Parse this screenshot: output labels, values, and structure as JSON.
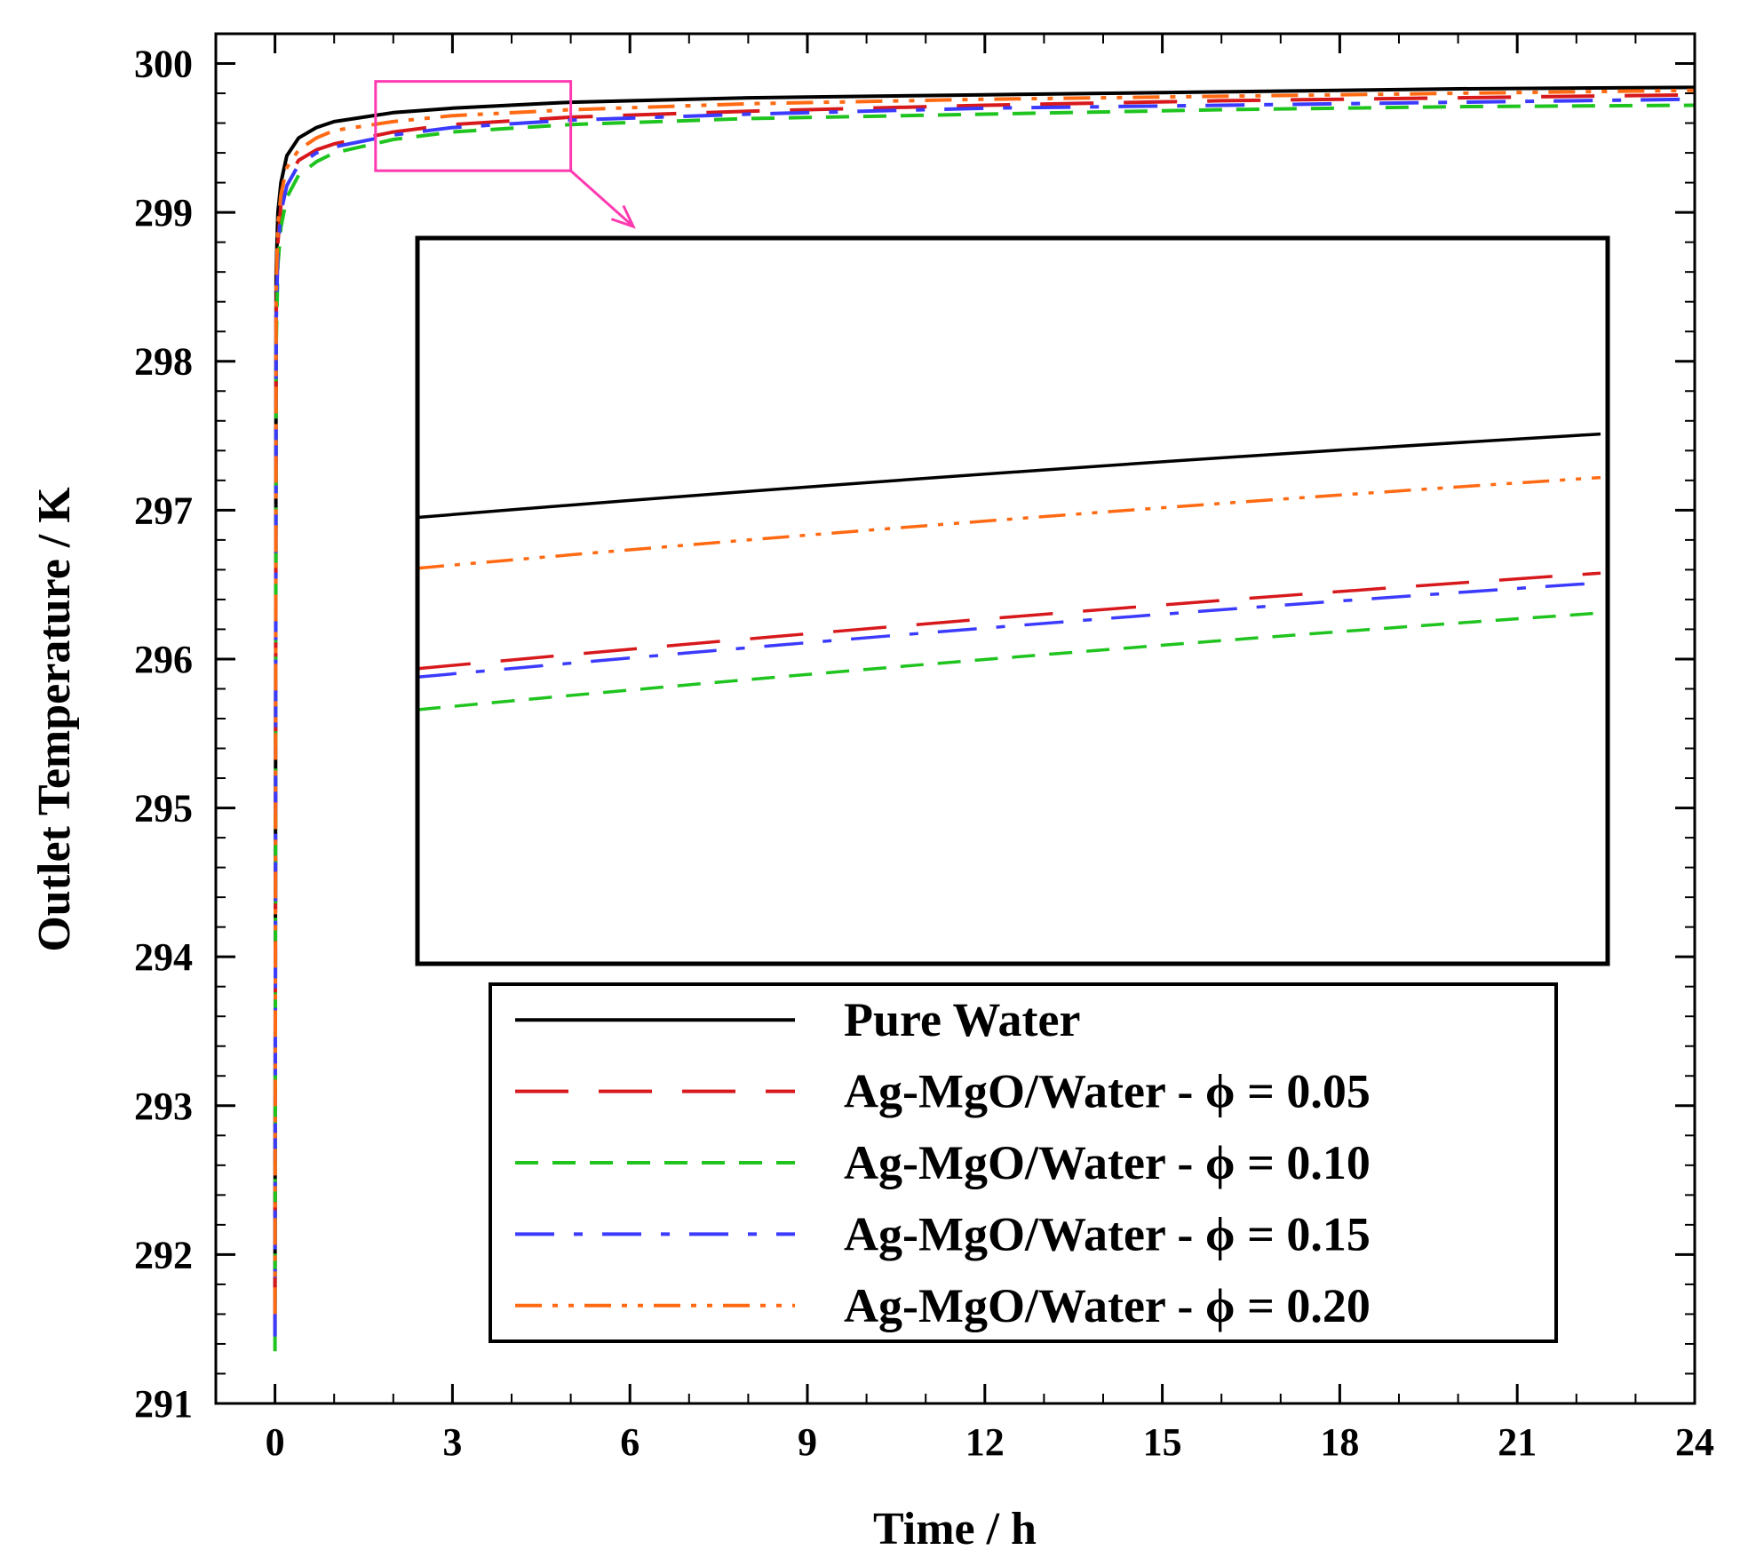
{
  "chart_data": {
    "type": "line",
    "xlabel": "Time / h",
    "ylabel": "Outlet Temperature / K",
    "xlim": [
      -1,
      24
    ],
    "ylim": [
      291,
      300.2
    ],
    "xticks": [
      0,
      3,
      6,
      9,
      12,
      15,
      18,
      21,
      24
    ],
    "yticks": [
      291,
      292,
      293,
      294,
      295,
      296,
      297,
      298,
      299,
      300
    ],
    "xtick_labels": [
      "0",
      "3",
      "6",
      "9",
      "12",
      "15",
      "18",
      "21",
      "24"
    ],
    "ytick_labels": [
      "291",
      "292",
      "293",
      "294",
      "295",
      "296",
      "297",
      "298",
      "299",
      "300"
    ],
    "x": [
      0,
      0.02,
      0.05,
      0.1,
      0.2,
      0.4,
      0.7,
      1,
      2,
      3,
      5,
      8,
      12,
      16,
      20,
      24
    ],
    "series": [
      {
        "name": "Pure Water",
        "color": "#000000",
        "dash": "solid",
        "values": [
          291.7,
          298.6,
          299.0,
          299.2,
          299.38,
          299.5,
          299.57,
          299.61,
          299.67,
          299.7,
          299.74,
          299.77,
          299.79,
          299.81,
          299.83,
          299.84
        ]
      },
      {
        "name": "Ag-MgO/Water - ϕ = 0.05",
        "color": "#d7191c",
        "dash": "long-dash",
        "values": [
          291.5,
          298.3,
          298.8,
          299.05,
          299.22,
          299.35,
          299.42,
          299.46,
          299.54,
          299.59,
          299.64,
          299.68,
          299.72,
          299.75,
          299.77,
          299.79
        ]
      },
      {
        "name": "Ag-MgO/Water - ϕ = 0.10",
        "color": "#1fc41f",
        "dash": "dash",
        "values": [
          291.35,
          298.1,
          298.65,
          298.9,
          299.1,
          299.25,
          299.34,
          299.4,
          299.49,
          299.54,
          299.59,
          299.63,
          299.66,
          299.69,
          299.71,
          299.72
        ]
      },
      {
        "name": "Ag-MgO/Water - ϕ = 0.15",
        "color": "#3b3bff",
        "dash": "dash-dot",
        "values": [
          291.45,
          298.25,
          298.75,
          299.0,
          299.18,
          299.32,
          299.4,
          299.44,
          299.52,
          299.57,
          299.62,
          299.66,
          299.7,
          299.72,
          299.74,
          299.76
        ]
      },
      {
        "name": "Ag-MgO/Water - ϕ = 0.20",
        "color": "#ff6a13",
        "dash": "dash-dot-dot",
        "values": [
          291.6,
          298.5,
          298.92,
          299.12,
          299.3,
          299.42,
          299.5,
          299.55,
          299.61,
          299.65,
          299.69,
          299.73,
          299.76,
          299.78,
          299.8,
          299.82
        ]
      }
    ],
    "inset": {
      "zoom_region": {
        "x": [
          1.7,
          5
        ],
        "y": [
          299.28,
          299.88
        ]
      },
      "series_endpoints": [
        {
          "name": "Pure Water",
          "start": 299.649,
          "end": 299.718
        },
        {
          "name": "Ag-MgO/Water - ϕ = 0.05",
          "start": 299.524,
          "end": 299.603
        },
        {
          "name": "Ag-MgO/Water - ϕ = 0.10",
          "start": 299.49,
          "end": 299.57
        },
        {
          "name": "Ag-MgO/Water - ϕ = 0.15",
          "start": 299.517,
          "end": 299.595
        },
        {
          "name": "Ag-MgO/Water - ϕ = 0.20",
          "start": 299.607,
          "end": 299.682
        }
      ]
    },
    "legend_position": "lower-right"
  }
}
